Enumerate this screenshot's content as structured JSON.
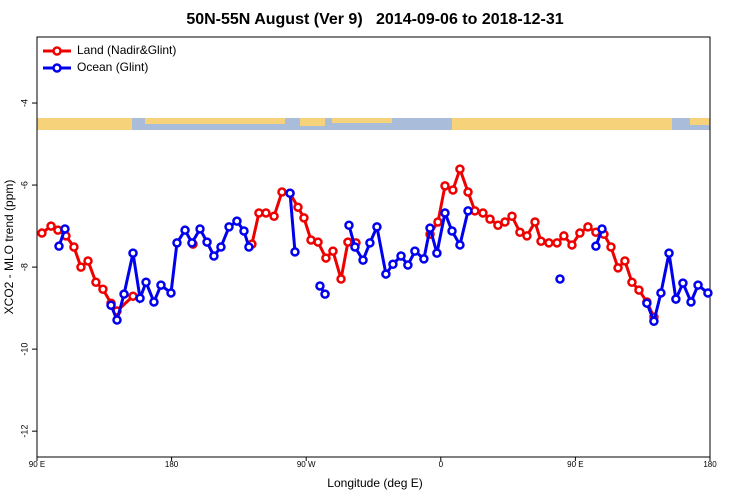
{
  "chart_data": {
    "type": "line",
    "title": "50N-55N August (Ver 9)   2014-09-06 to 2018-12-31",
    "x_label": "Longitude (deg E)",
    "y_label": "XCO2 - MLO trend (ppm)",
    "xlim": [
      90,
      540
    ],
    "xticks": [
      {
        "value": 90,
        "label": "90 E"
      },
      {
        "value": 180,
        "label": "180"
      },
      {
        "value": 270,
        "label": "90 W"
      },
      {
        "value": 360,
        "label": "0"
      },
      {
        "value": 450,
        "label": "90 E"
      },
      {
        "value": 540,
        "label": "180"
      }
    ],
    "ylim": [
      -12.63,
      -2.39
    ],
    "yticks": [
      -4,
      -6,
      -8,
      -10,
      -12
    ],
    "legend": "top-left",
    "series": [
      {
        "name": "Land (Nadir&Glint)",
        "color": "#ee0000",
        "x": [
          93.3,
          99.4,
          104.0,
          109.4,
          114.7,
          119.4,
          124.1,
          129.4,
          134.1,
          139.5,
          143.5,
          154.2,
          null,
          194.3,
          null,
          233.7,
          238.4,
          243.1,
          248.5,
          253.8,
          259.2,
          264.5,
          268.5,
          273.2,
          277.9,
          283.2,
          287.9,
          293.3,
          297.9,
          303.3,
          null,
          352.8,
          358.1,
          362.8,
          368.1,
          372.8,
          378.2,
          382.8,
          388.2,
          392.9,
          398.2,
          402.9,
          407.6,
          412.9,
          417.6,
          423.0,
          427.0,
          432.3,
          437.7,
          442.3,
          447.7,
          453.0,
          458.4,
          463.7,
          469.1,
          473.8,
          478.5,
          483.1,
          487.8,
          492.5,
          497.8,
          502.5
        ],
        "values": [
          -7.17,
          -7.0,
          -7.1,
          -7.24,
          -7.51,
          -8.0,
          -7.85,
          -8.37,
          -8.54,
          -8.88,
          -9.07,
          -8.71,
          null,
          -7.44,
          null,
          -7.44,
          -6.68,
          -6.68,
          -6.76,
          -6.17,
          -6.2,
          -6.54,
          -6.8,
          -7.34,
          -7.39,
          -7.78,
          -7.61,
          -8.29,
          -7.39,
          -7.41,
          null,
          -7.2,
          -6.9,
          -6.02,
          -6.12,
          -5.61,
          -6.17,
          -6.63,
          -6.68,
          -6.83,
          -6.98,
          -6.9,
          -6.76,
          -7.15,
          -7.24,
          -6.9,
          -7.37,
          -7.41,
          -7.41,
          -7.24,
          -7.46,
          -7.17,
          -7.02,
          -7.15,
          -7.2,
          -7.51,
          -8.02,
          -7.85,
          -8.37,
          -8.56,
          -8.85,
          -9.22
        ]
      },
      {
        "name": "Ocean (Glint)",
        "color": "#0000ee",
        "x": [
          104.7,
          108.7,
          null,
          139.5,
          143.5,
          148.2,
          154.2,
          158.9,
          162.9,
          168.2,
          172.9,
          179.6,
          183.6,
          189.0,
          193.6,
          199.0,
          203.7,
          208.3,
          213.0,
          218.4,
          223.7,
          228.4,
          231.7,
          null,
          259.2,
          262.5,
          null,
          279.2,
          282.6,
          null,
          298.6,
          302.6,
          308.0,
          312.6,
          317.3,
          323.3,
          328.0,
          333.4,
          338.0,
          342.7,
          348.7,
          352.8,
          357.4,
          362.8,
          367.5,
          372.8,
          378.2,
          null,
          439.7,
          null,
          463.7,
          467.8,
          null,
          497.8,
          502.5,
          507.2,
          512.6,
          517.2,
          521.9,
          527.3,
          532.0,
          538.6
        ],
        "values": [
          -7.49,
          -7.07,
          null,
          -8.93,
          -9.29,
          -8.66,
          -7.66,
          -8.76,
          -8.37,
          -8.85,
          -8.44,
          -8.63,
          -7.41,
          -7.1,
          -7.41,
          -7.07,
          -7.39,
          -7.73,
          -7.51,
          -7.02,
          -6.88,
          -7.12,
          -7.51,
          null,
          -6.2,
          -7.63,
          null,
          -8.46,
          -8.66,
          null,
          -6.98,
          -7.51,
          -7.83,
          -7.41,
          -7.02,
          -8.17,
          -7.93,
          -7.73,
          -7.95,
          -7.61,
          -7.8,
          -7.05,
          -7.66,
          -6.68,
          -7.12,
          -7.46,
          -6.63,
          null,
          -8.29,
          null,
          -7.49,
          -7.07,
          null,
          -8.88,
          -9.32,
          -8.63,
          -7.66,
          -8.78,
          -8.39,
          -8.85,
          -8.44,
          -8.63
        ]
      }
    ]
  }
}
